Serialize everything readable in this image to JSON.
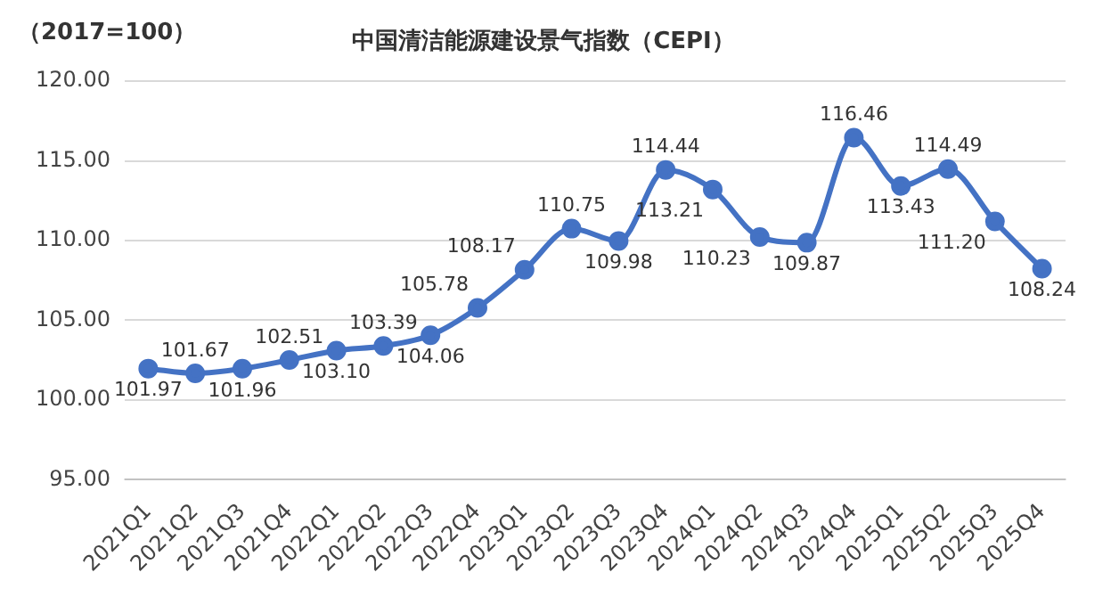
{
  "chart_data": {
    "type": "line",
    "title": "中国清洁能源建设景气指数（CEPI）",
    "ylabel": "（2017=100）",
    "categories": [
      "2021Q1",
      "2021Q2",
      "2021Q3",
      "2021Q4",
      "2022Q1",
      "2022Q2",
      "2022Q3",
      "2022Q4",
      "2023Q1",
      "2023Q2",
      "2023Q3",
      "2023Q4",
      "2024Q1",
      "2024Q2",
      "2024Q3",
      "2024Q4",
      "2025Q1",
      "2025Q2",
      "2025Q3",
      "2025Q4"
    ],
    "series": [
      {
        "color": "#4472c4",
        "values": [
          101.97,
          101.67,
          101.96,
          102.51,
          103.1,
          103.39,
          104.06,
          105.78,
          108.17,
          110.75,
          109.98,
          114.44,
          113.21,
          110.23,
          109.87,
          116.46,
          113.43,
          114.49,
          111.2,
          108.24
        ],
        "value_labels": [
          "101.97",
          "101.67",
          "101.96",
          "102.51",
          "103.10",
          "103.39",
          "104.06",
          "105.78",
          "108.17",
          "110.75",
          "109.98",
          "114.44",
          "113.21",
          "110.23",
          "109.87",
          "116.46",
          "113.43",
          "114.49",
          "111.20",
          "108.24"
        ]
      }
    ],
    "ylim": [
      95,
      120
    ],
    "yticks": [
      {
        "value": 95,
        "label": "95.00"
      },
      {
        "value": 100,
        "label": "100.00"
      },
      {
        "value": 105,
        "label": "105.00"
      },
      {
        "value": 110,
        "label": "110.00"
      },
      {
        "value": 115,
        "label": "115.00"
      },
      {
        "value": 120,
        "label": "120.00"
      }
    ],
    "grid": "y",
    "legend": false,
    "marker": "circle",
    "line_style": "solid"
  }
}
